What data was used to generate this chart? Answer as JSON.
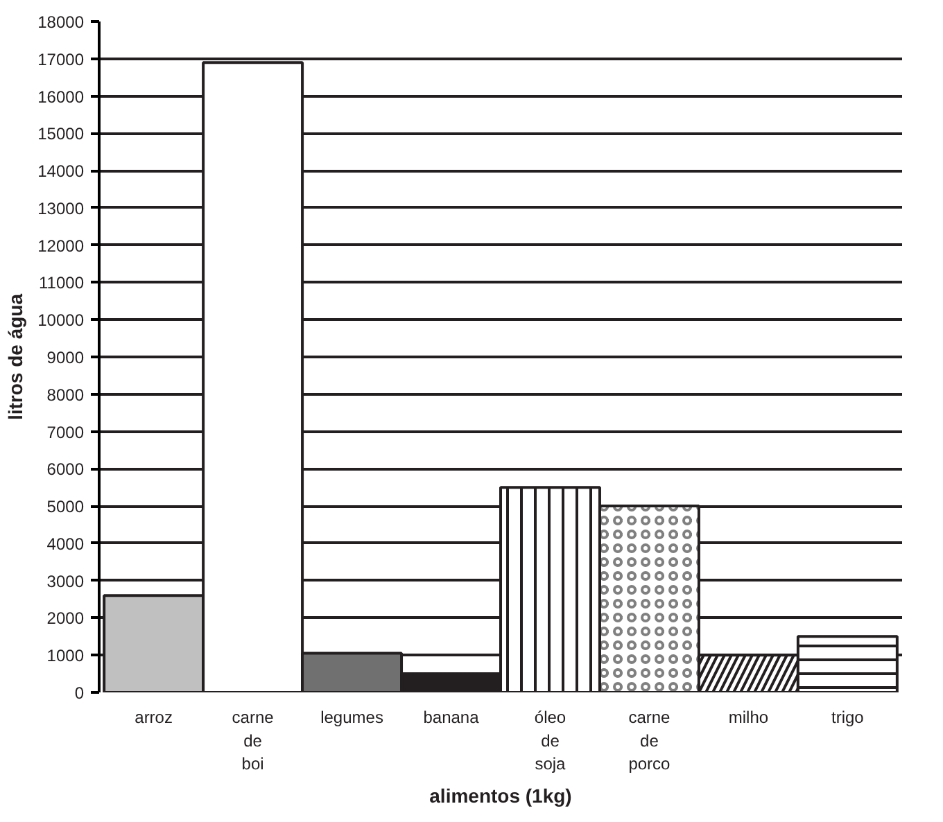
{
  "chart_data": {
    "type": "bar",
    "categories": [
      "arroz",
      "carne de boi",
      "legumes",
      "banana",
      "óleo de soja",
      "carne de porco",
      "milho",
      "trigo"
    ],
    "values": [
      2600,
      16900,
      1050,
      500,
      5500,
      5000,
      1000,
      1500
    ],
    "colors": [
      "#c0c0c0",
      "#ffffff",
      "#707070",
      "#231f20",
      "#ffffff",
      "#ffffff",
      "#ffffff",
      "#ffffff"
    ],
    "xlabel": "alimentos (1kg)",
    "ylabel": "litros de água",
    "ylim": [
      0,
      18000
    ],
    "yticks": [
      0,
      1000,
      2000,
      3000,
      4000,
      5000,
      6000,
      7000,
      8000,
      9000,
      10000,
      11000,
      12000,
      13000,
      14000,
      15000,
      16000,
      17000,
      18000
    ],
    "grid": "y"
  }
}
